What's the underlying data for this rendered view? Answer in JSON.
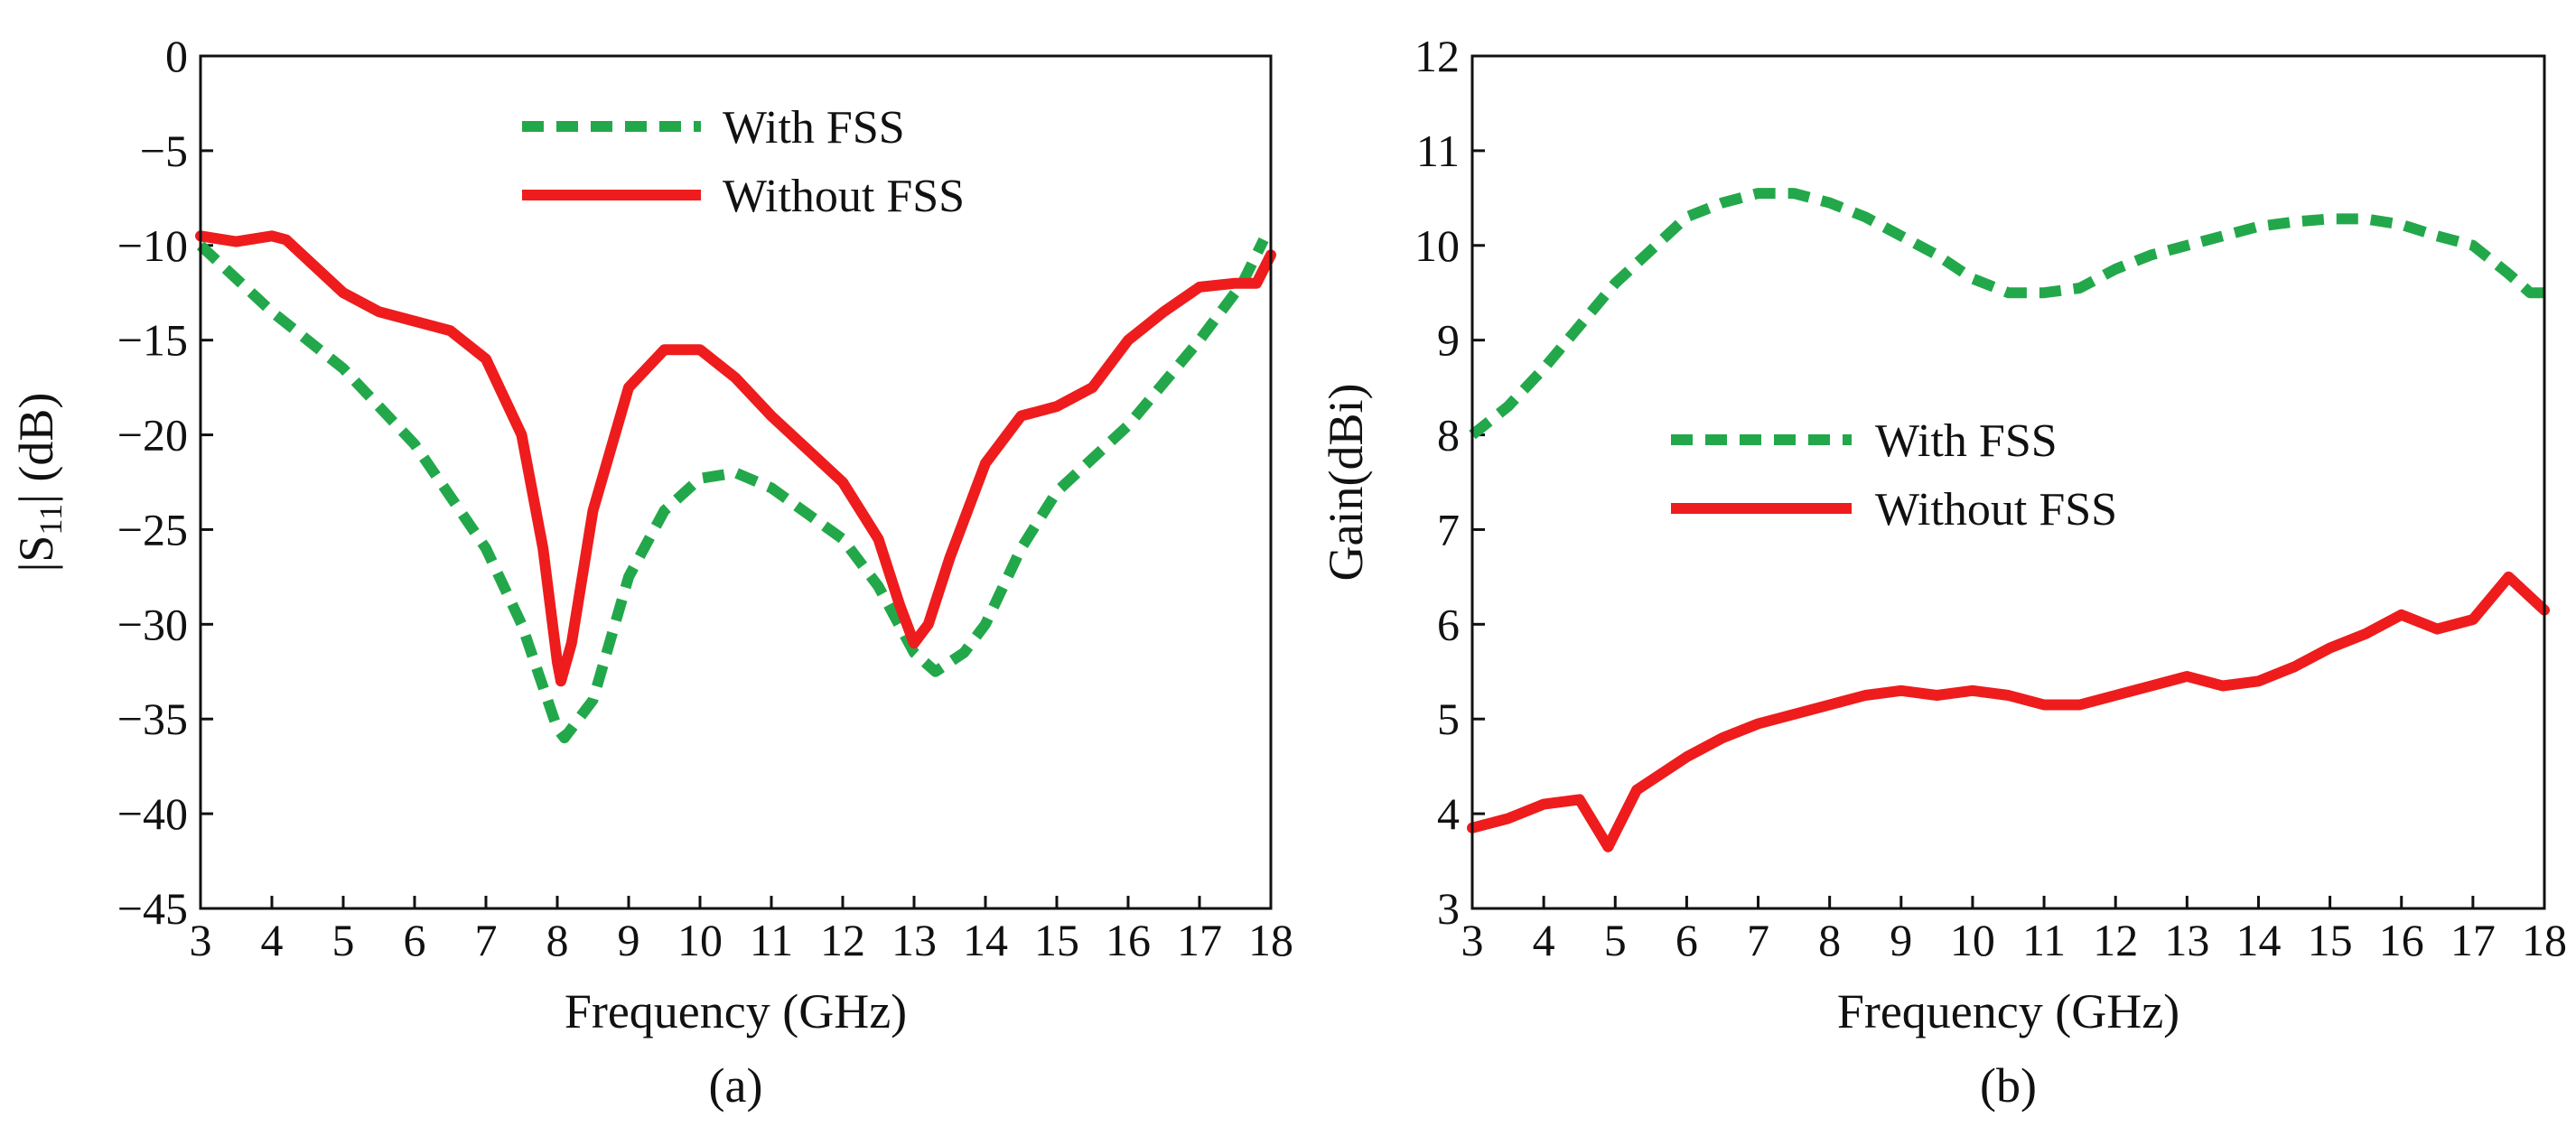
{
  "chart_data": [
    {
      "type": "line",
      "caption": "(a)",
      "xlabel": "Frequency (GHz)",
      "ylabel_prefix": "|S",
      "ylabel_subscript": "11",
      "ylabel_suffix": "| (dB)",
      "xlim": [
        3,
        18
      ],
      "ylim": [
        -45,
        0
      ],
      "xticks": [
        3,
        4,
        5,
        6,
        7,
        8,
        9,
        10,
        11,
        12,
        13,
        14,
        15,
        16,
        17,
        18
      ],
      "yticks": [
        0,
        -5,
        -10,
        -15,
        -20,
        -25,
        -30,
        -35,
        -40,
        -45
      ],
      "ytick_labels": [
        "0",
        "−5",
        "−10",
        "−15",
        "−20",
        "−25",
        "−30",
        "−35",
        "−40",
        "−45"
      ],
      "legend_position": "top-center",
      "series": [
        {
          "name": "With FSS",
          "style": "dashed",
          "color": "#22a84a",
          "points": [
            [
              3,
              -10
            ],
            [
              4,
              -13.5
            ],
            [
              5,
              -16.5
            ],
            [
              6,
              -20.5
            ],
            [
              7,
              -26
            ],
            [
              7.5,
              -30
            ],
            [
              8,
              -35.5
            ],
            [
              8.1,
              -36
            ],
            [
              8.5,
              -34
            ],
            [
              9,
              -27.5
            ],
            [
              9.5,
              -24
            ],
            [
              10,
              -22.3
            ],
            [
              10.5,
              -22
            ],
            [
              11,
              -22.8
            ],
            [
              12,
              -25.5
            ],
            [
              12.5,
              -28
            ],
            [
              13,
              -31.5
            ],
            [
              13.3,
              -32.5
            ],
            [
              13.7,
              -31.5
            ],
            [
              14,
              -30
            ],
            [
              14.5,
              -26
            ],
            [
              15,
              -23
            ],
            [
              16,
              -19.5
            ],
            [
              17,
              -15
            ],
            [
              17.6,
              -12
            ],
            [
              17.9,
              -9.7
            ]
          ]
        },
        {
          "name": "Without FSS",
          "style": "solid",
          "color": "#ee1c1c",
          "points": [
            [
              3,
              -9.5
            ],
            [
              3.5,
              -9.8
            ],
            [
              4,
              -9.5
            ],
            [
              4.2,
              -9.7
            ],
            [
              5,
              -12.5
            ],
            [
              5.5,
              -13.5
            ],
            [
              6,
              -14
            ],
            [
              6.5,
              -14.5
            ],
            [
              7,
              -16
            ],
            [
              7.5,
              -20
            ],
            [
              7.8,
              -26
            ],
            [
              8,
              -32
            ],
            [
              8.05,
              -33
            ],
            [
              8.2,
              -31
            ],
            [
              8.5,
              -24
            ],
            [
              9,
              -17.5
            ],
            [
              9.5,
              -15.5
            ],
            [
              10,
              -15.5
            ],
            [
              10.5,
              -17
            ],
            [
              11,
              -19
            ],
            [
              12,
              -22.5
            ],
            [
              12.5,
              -25.5
            ],
            [
              12.8,
              -29
            ],
            [
              13,
              -31
            ],
            [
              13.2,
              -30
            ],
            [
              13.5,
              -26.5
            ],
            [
              14,
              -21.5
            ],
            [
              14.5,
              -19
            ],
            [
              15,
              -18.5
            ],
            [
              15.5,
              -17.5
            ],
            [
              16,
              -15
            ],
            [
              16.5,
              -13.5
            ],
            [
              17,
              -12.2
            ],
            [
              17.5,
              -12
            ],
            [
              17.8,
              -12
            ],
            [
              18,
              -10.5
            ]
          ]
        }
      ]
    },
    {
      "type": "line",
      "caption": "(b)",
      "xlabel": "Frequency (GHz)",
      "ylabel": "Gain(dBi)",
      "xlim": [
        3,
        18
      ],
      "ylim": [
        3,
        12
      ],
      "xticks": [
        3,
        4,
        5,
        6,
        7,
        8,
        9,
        10,
        11,
        12,
        13,
        14,
        15,
        16,
        17,
        18
      ],
      "yticks": [
        3,
        4,
        5,
        6,
        7,
        8,
        9,
        10,
        11,
        12
      ],
      "ytick_labels": [
        "3",
        "4",
        "5",
        "6",
        "7",
        "8",
        "9",
        "10",
        "11",
        "12"
      ],
      "legend_position": "center-left",
      "series": [
        {
          "name": "With FSS",
          "style": "dashed",
          "color": "#22a84a",
          "points": [
            [
              3,
              8
            ],
            [
              3.5,
              8.3
            ],
            [
              4,
              8.7
            ],
            [
              5,
              9.6
            ],
            [
              6,
              10.3
            ],
            [
              6.5,
              10.45
            ],
            [
              7,
              10.55
            ],
            [
              7.5,
              10.55
            ],
            [
              8,
              10.45
            ],
            [
              8.5,
              10.3
            ],
            [
              9,
              10.1
            ],
            [
              9.5,
              9.9
            ],
            [
              10,
              9.65
            ],
            [
              10.5,
              9.5
            ],
            [
              11,
              9.5
            ],
            [
              11.5,
              9.55
            ],
            [
              12,
              9.75
            ],
            [
              12.5,
              9.9
            ],
            [
              13,
              10
            ],
            [
              14,
              10.2
            ],
            [
              14.5,
              10.25
            ],
            [
              15,
              10.28
            ],
            [
              15.5,
              10.28
            ],
            [
              16,
              10.22
            ],
            [
              16.5,
              10.1
            ],
            [
              17,
              10
            ],
            [
              17.5,
              9.7
            ],
            [
              17.8,
              9.5
            ],
            [
              18,
              9.5
            ]
          ]
        },
        {
          "name": "Without FSS",
          "style": "solid",
          "color": "#ee1c1c",
          "points": [
            [
              3,
              3.85
            ],
            [
              3.5,
              3.95
            ],
            [
              4,
              4.1
            ],
            [
              4.5,
              4.15
            ],
            [
              4.9,
              3.65
            ],
            [
              5.3,
              4.25
            ],
            [
              6,
              4.6
            ],
            [
              6.5,
              4.8
            ],
            [
              7,
              4.95
            ],
            [
              8,
              5.15
            ],
            [
              8.5,
              5.25
            ],
            [
              9,
              5.3
            ],
            [
              9.5,
              5.25
            ],
            [
              10,
              5.3
            ],
            [
              10.5,
              5.25
            ],
            [
              11,
              5.15
            ],
            [
              11.5,
              5.15
            ],
            [
              12,
              5.25
            ],
            [
              12.5,
              5.35
            ],
            [
              13,
              5.45
            ],
            [
              13.5,
              5.35
            ],
            [
              14,
              5.4
            ],
            [
              14.5,
              5.55
            ],
            [
              15,
              5.75
            ],
            [
              15.5,
              5.9
            ],
            [
              16,
              6.1
            ],
            [
              16.5,
              5.95
            ],
            [
              17,
              6.05
            ],
            [
              17.5,
              6.5
            ],
            [
              18,
              6.15
            ]
          ]
        }
      ]
    }
  ]
}
